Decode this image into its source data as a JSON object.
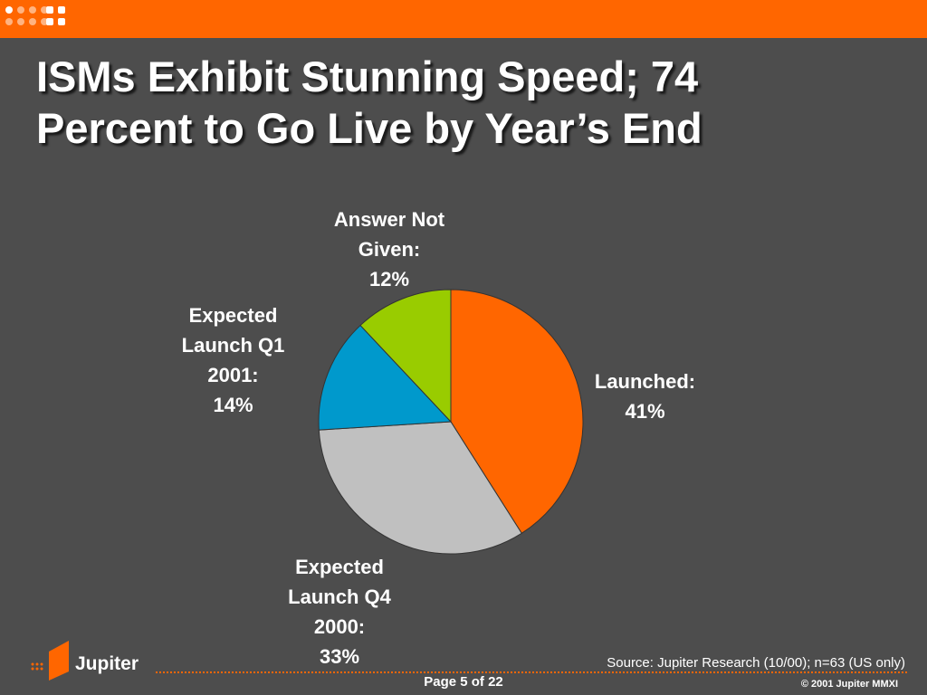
{
  "header": {
    "title_line1": "ISMs Exhibit Stunning Speed; 74",
    "title_line2": "Percent to Go Live by Year’s End"
  },
  "colors": {
    "background": "#4d4d4d",
    "accent": "#ff6600"
  },
  "chart_data": {
    "type": "pie",
    "title": "",
    "slices": [
      {
        "label_lines": [
          "Launched:",
          "41%"
        ],
        "value": 41,
        "color": "#ff6600"
      },
      {
        "label_lines": [
          "Expected",
          "Launch Q4",
          "2000:",
          "33%"
        ],
        "value": 33,
        "color": "#c0c0c0"
      },
      {
        "label_lines": [
          "Expected",
          "Launch Q1",
          "2001:",
          "14%"
        ],
        "value": 14,
        "color": "#0099cc"
      },
      {
        "label_lines": [
          "Answer Not",
          "Given:",
          "12%"
        ],
        "value": 12,
        "color": "#99cc00"
      }
    ],
    "start": "12 o'clock",
    "direction": "clockwise"
  },
  "footer": {
    "logo_text": "Jupiter",
    "source": "Source: Jupiter Research (10/00); n=63 (US only)",
    "page": "Page 5 of 22",
    "copyright": "© 2001 Jupiter MMXI"
  }
}
